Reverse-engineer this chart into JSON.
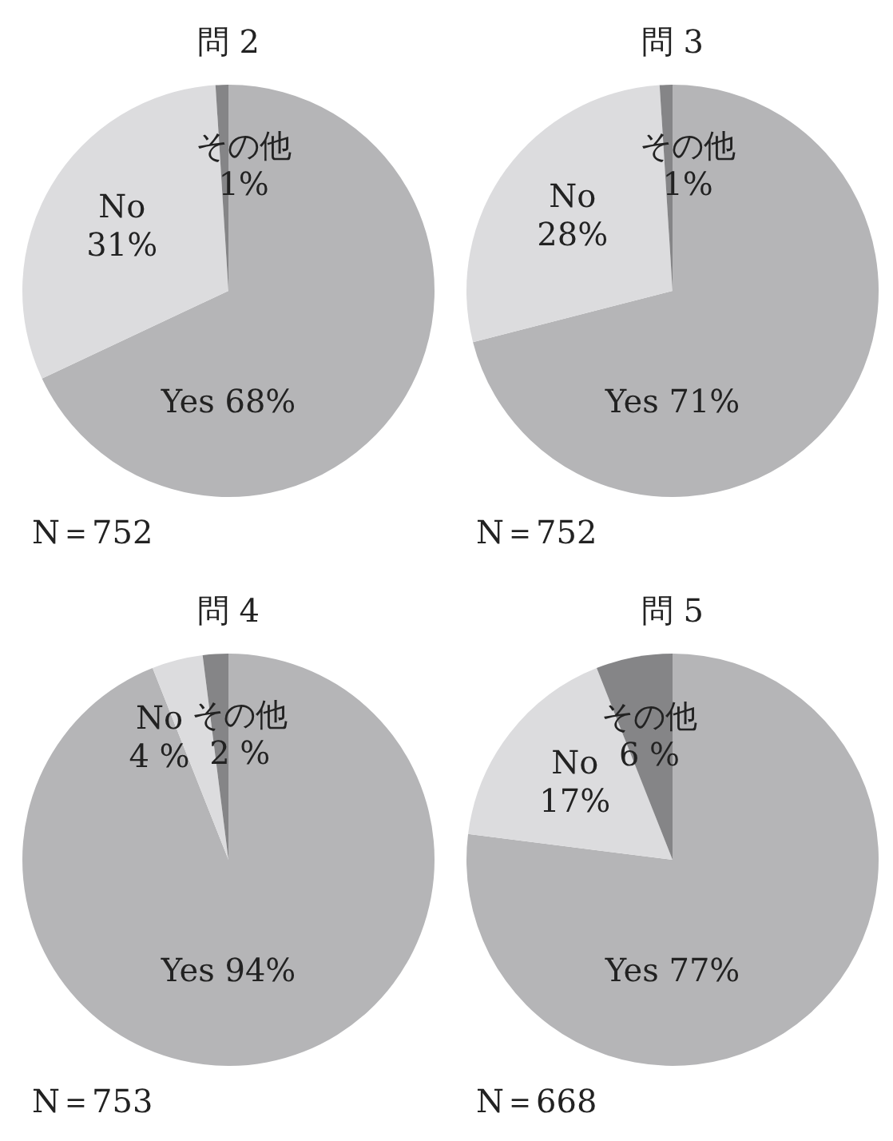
{
  "chart_data": [
    {
      "type": "pie",
      "title": "問 2",
      "categories": [
        "Yes",
        "No",
        "その他"
      ],
      "values": [
        68,
        31,
        1
      ],
      "value_labels": [
        "68%",
        "31%",
        "1%"
      ],
      "colors": [
        "#b5b5b7",
        "#dcdcde",
        "#858587"
      ],
      "annotations": [
        "N＝752"
      ]
    },
    {
      "type": "pie",
      "title": "問 3",
      "categories": [
        "Yes",
        "No",
        "その他"
      ],
      "values": [
        71,
        28,
        1
      ],
      "value_labels": [
        "71%",
        "28%",
        "1%"
      ],
      "colors": [
        "#b5b5b7",
        "#dcdcde",
        "#858587"
      ],
      "annotations": [
        "N＝752"
      ]
    },
    {
      "type": "pie",
      "title": "問 4",
      "categories": [
        "Yes",
        "No",
        "その他"
      ],
      "values": [
        94,
        4,
        2
      ],
      "value_labels": [
        "94%",
        "4 %",
        "2 %"
      ],
      "colors": [
        "#b5b5b7",
        "#dcdcde",
        "#858587"
      ],
      "annotations": [
        "N＝753"
      ]
    },
    {
      "type": "pie",
      "title": "問 5",
      "categories": [
        "Yes",
        "No",
        "その他"
      ],
      "values": [
        77,
        17,
        6
      ],
      "value_labels": [
        "77%",
        "17%",
        "6 %"
      ],
      "colors": [
        "#b5b5b7",
        "#dcdcde",
        "#858587"
      ],
      "annotations": [
        "N＝668"
      ]
    }
  ]
}
